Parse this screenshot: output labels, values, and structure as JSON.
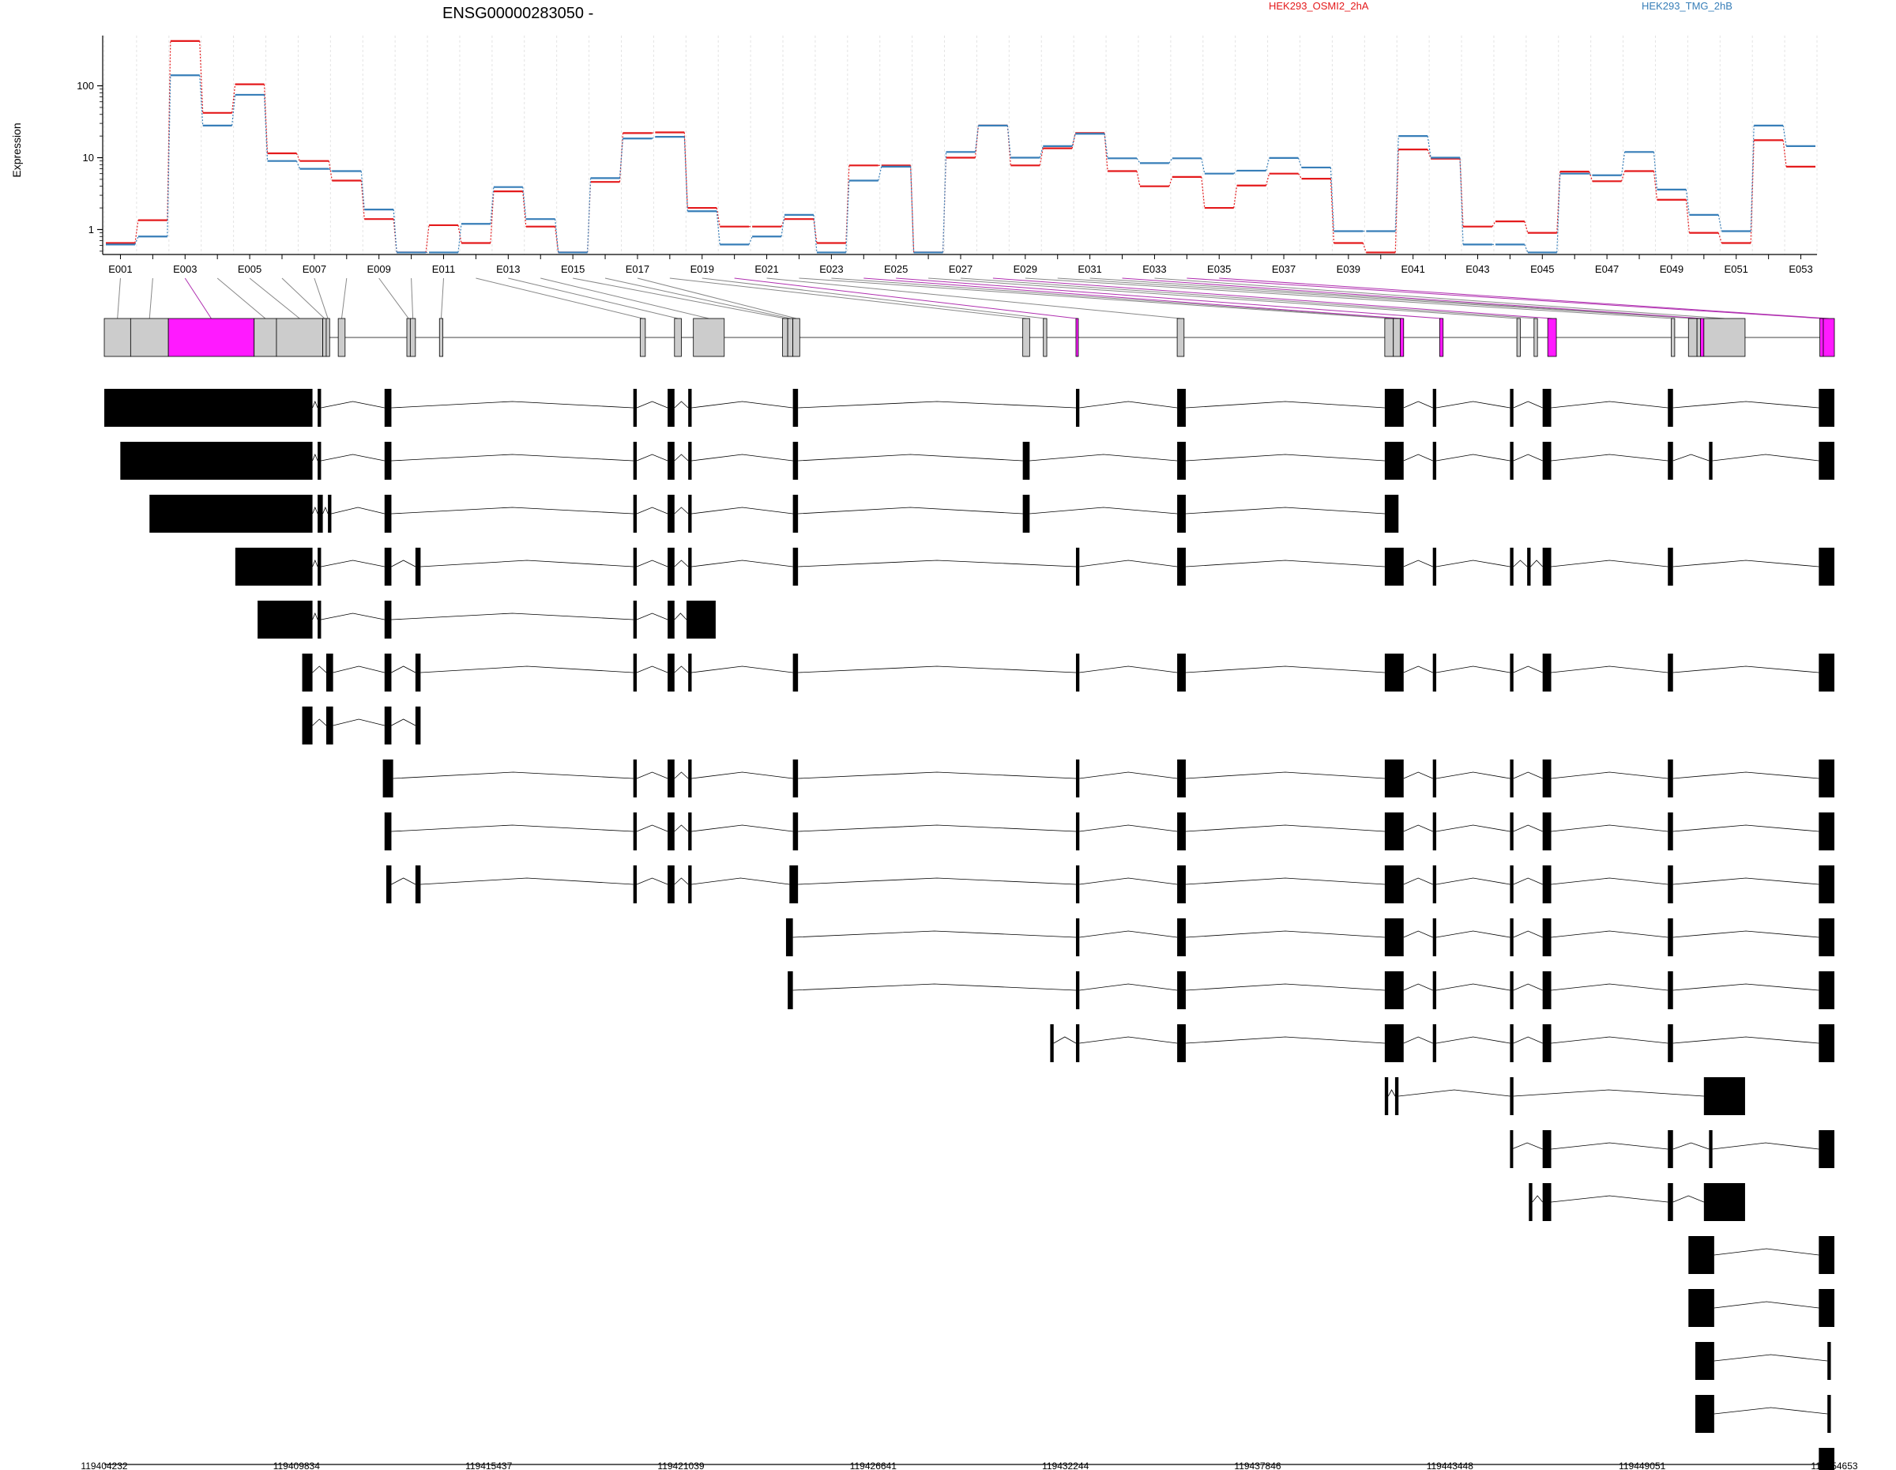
{
  "chart_data": {
    "type": "line",
    "gene_id": "ENSG00000283050 -",
    "ylabel": "Expression",
    "yscale": "log",
    "yticks": [
      "1",
      "10",
      "100"
    ],
    "ylim": [
      0.45,
      500
    ],
    "highlight_color": "#ff1aff",
    "exon_fill": "#cccccc",
    "series": [
      {
        "name": "HEK293_OSMI2_2hA",
        "color": "#e41a1c",
        "values": [
          0.65,
          1.35,
          420,
          42,
          105,
          11.5,
          9,
          4.8,
          1.4,
          0.48,
          1.15,
          0.65,
          3.4,
          1.1,
          0.48,
          4.6,
          22,
          22.5,
          2,
          1.1,
          1.1,
          1.4,
          0.65,
          7.8,
          7.8,
          0.48,
          10,
          28,
          7.8,
          13.5,
          22,
          6.5,
          4,
          5.4,
          2,
          4.1,
          6,
          5.1,
          0.65,
          0.48,
          13,
          9.7,
          1.1,
          1.3,
          0.9,
          6.4,
          4.7,
          6.5,
          2.6,
          0.9,
          0.65,
          17.5,
          7.5
        ]
      },
      {
        "name": "HEK293_TMG_2hB",
        "color": "#377eb8",
        "values": [
          0.62,
          0.8,
          140,
          28,
          75,
          9,
          7,
          6.5,
          1.9,
          0.48,
          0.48,
          1.2,
          3.9,
          1.4,
          0.48,
          5.2,
          18.5,
          19.5,
          1.8,
          0.62,
          0.8,
          1.6,
          0.48,
          4.8,
          7.5,
          0.48,
          12,
          28,
          10,
          14.5,
          21.5,
          9.8,
          8.4,
          9.8,
          6,
          6.6,
          9.9,
          7.3,
          0.95,
          0.95,
          20,
          10,
          0.62,
          0.62,
          0.48,
          6,
          5.7,
          12,
          3.6,
          1.6,
          0.95,
          28,
          14.5
        ]
      }
    ],
    "exon_labels": [
      "E001",
      "E003",
      "E005",
      "E007",
      "E009",
      "E011",
      "E013",
      "E015",
      "E017",
      "E019",
      "E021",
      "E023",
      "E025",
      "E027",
      "E029",
      "E031",
      "E033",
      "E035",
      "E037",
      "E039",
      "E041",
      "E043",
      "E045",
      "E047",
      "E049",
      "E051",
      "E053"
    ],
    "exons": [
      [
        119404232,
        119405000,
        0
      ],
      [
        119405000,
        119406100,
        0
      ],
      [
        119406100,
        119408600,
        1
      ],
      [
        119408600,
        119409250,
        0
      ],
      [
        119409250,
        119410600,
        0
      ],
      [
        119410600,
        119410700,
        0
      ],
      [
        119410700,
        119410800,
        0
      ],
      [
        119411050,
        119411250,
        0
      ],
      [
        119413050,
        119413150,
        0
      ],
      [
        119413150,
        119413300,
        0
      ],
      [
        119414000,
        119414100,
        0
      ],
      [
        119419850,
        119420000,
        0
      ],
      [
        119420850,
        119421050,
        0
      ],
      [
        119421400,
        119422300,
        0
      ],
      [
        119424000,
        119424150,
        0
      ],
      [
        119424150,
        119424300,
        0
      ],
      [
        119424300,
        119424500,
        0
      ],
      [
        119431000,
        119431200,
        0
      ],
      [
        119431600,
        119431700,
        0
      ],
      [
        119432550,
        119432600,
        1
      ],
      [
        119435500,
        119435700,
        0
      ],
      [
        119441550,
        119441800,
        0
      ],
      [
        119441800,
        119442000,
        0
      ],
      [
        119442000,
        119442100,
        1
      ],
      [
        119443150,
        119443250,
        1
      ],
      [
        119445400,
        119445500,
        0
      ],
      [
        119445900,
        119446000,
        0
      ],
      [
        119446300,
        119446550,
        1
      ],
      [
        119449900,
        119450000,
        0
      ],
      [
        119450400,
        119450650,
        0
      ],
      [
        119450650,
        119450750,
        0
      ],
      [
        119450750,
        119450850,
        1
      ],
      [
        119450850,
        119452050,
        0
      ],
      [
        119454230,
        119454330,
        1
      ],
      [
        119454330,
        119454653,
        1
      ]
    ],
    "transcripts": [
      [
        [
          119404232,
          119410300
        ],
        [
          119410450,
          119410550
        ],
        [
          119412400,
          119412600
        ],
        [
          119419650,
          119419750
        ],
        [
          119420650,
          119420850
        ],
        [
          119421250,
          119421350
        ],
        [
          119424300,
          119424450
        ],
        [
          119432550,
          119432650
        ],
        [
          119435500,
          119435750
        ],
        [
          119441550,
          119442100
        ],
        [
          119442950,
          119443050
        ],
        [
          119445200,
          119445300
        ],
        [
          119446150,
          119446400
        ],
        [
          119449800,
          119449950
        ],
        [
          119454200,
          119454653
        ]
      ],
      [
        [
          119404700,
          119410300
        ],
        [
          119410450,
          119410550
        ],
        [
          119412400,
          119412600
        ],
        [
          119419650,
          119419750
        ],
        [
          119420650,
          119420850
        ],
        [
          119421250,
          119421350
        ],
        [
          119424300,
          119424450
        ],
        [
          119431000,
          119431200
        ],
        [
          119435500,
          119435750
        ],
        [
          119441550,
          119442100
        ],
        [
          119442950,
          119443050
        ],
        [
          119445200,
          119445300
        ],
        [
          119446150,
          119446400
        ],
        [
          119449800,
          119449950
        ],
        [
          119451000,
          119451100
        ],
        [
          119454200,
          119454653
        ]
      ],
      [
        [
          119405550,
          119410300
        ],
        [
          119410450,
          119410600
        ],
        [
          119410750,
          119410850
        ],
        [
          119412400,
          119412600
        ],
        [
          119419650,
          119419750
        ],
        [
          119420650,
          119420850
        ],
        [
          119421250,
          119421350
        ],
        [
          119424300,
          119424450
        ],
        [
          119431000,
          119431200
        ],
        [
          119435500,
          119435750
        ],
        [
          119441550,
          119441950
        ]
      ],
      [
        [
          119408050,
          119410300
        ],
        [
          119410450,
          119410550
        ],
        [
          119412400,
          119412600
        ],
        [
          119413300,
          119413450
        ],
        [
          119419650,
          119419750
        ],
        [
          119420650,
          119420850
        ],
        [
          119421250,
          119421350
        ],
        [
          119424300,
          119424450
        ],
        [
          119432550,
          119432650
        ],
        [
          119435500,
          119435750
        ],
        [
          119441550,
          119442100
        ],
        [
          119442950,
          119443050
        ],
        [
          119445200,
          119445300
        ],
        [
          119445700,
          119445800
        ],
        [
          119446150,
          119446400
        ],
        [
          119449800,
          119449950
        ],
        [
          119454200,
          119454653
        ]
      ],
      [
        [
          119408700,
          119410300
        ],
        [
          119410450,
          119410550
        ],
        [
          119412400,
          119412600
        ],
        [
          119419650,
          119419750
        ],
        [
          119420650,
          119420850
        ],
        [
          119421200,
          119422050
        ]
      ],
      [
        [
          119410000,
          119410300
        ],
        [
          119410700,
          119410900
        ],
        [
          119412400,
          119412600
        ],
        [
          119413300,
          119413450
        ],
        [
          119419650,
          119419750
        ],
        [
          119420650,
          119420850
        ],
        [
          119421250,
          119421350
        ],
        [
          119424300,
          119424450
        ],
        [
          119432550,
          119432650
        ],
        [
          119435500,
          119435750
        ],
        [
          119441550,
          119442100
        ],
        [
          119442950,
          119443050
        ],
        [
          119445200,
          119445300
        ],
        [
          119446150,
          119446400
        ],
        [
          119449800,
          119449950
        ],
        [
          119454200,
          119454653
        ]
      ],
      [
        [
          119410000,
          119410300
        ],
        [
          119410700,
          119410900
        ],
        [
          119412400,
          119412600
        ],
        [
          119413300,
          119413450
        ]
      ],
      [
        [
          119412350,
          119412650
        ],
        [
          119419650,
          119419750
        ],
        [
          119420650,
          119420850
        ],
        [
          119421250,
          119421350
        ],
        [
          119424300,
          119424450
        ],
        [
          119432550,
          119432650
        ],
        [
          119435500,
          119435750
        ],
        [
          119441550,
          119442100
        ],
        [
          119442950,
          119443050
        ],
        [
          119445200,
          119445300
        ],
        [
          119446150,
          119446400
        ],
        [
          119449800,
          119449950
        ],
        [
          119454200,
          119454653
        ]
      ],
      [
        [
          119412400,
          119412600
        ],
        [
          119419650,
          119419750
        ],
        [
          119420650,
          119420850
        ],
        [
          119421250,
          119421350
        ],
        [
          119424300,
          119424450
        ],
        [
          119432550,
          119432650
        ],
        [
          119435500,
          119435750
        ],
        [
          119441550,
          119442100
        ],
        [
          119442950,
          119443050
        ],
        [
          119445200,
          119445300
        ],
        [
          119446150,
          119446400
        ],
        [
          119449800,
          119449950
        ],
        [
          119454200,
          119454653
        ]
      ],
      [
        [
          119412450,
          119412600
        ],
        [
          119413300,
          119413450
        ],
        [
          119419650,
          119419750
        ],
        [
          119420650,
          119420850
        ],
        [
          119421250,
          119421350
        ],
        [
          119424200,
          119424450
        ],
        [
          119432550,
          119432650
        ],
        [
          119435500,
          119435750
        ],
        [
          119441550,
          119442100
        ],
        [
          119442950,
          119443050
        ],
        [
          119445200,
          119445300
        ],
        [
          119446150,
          119446400
        ],
        [
          119449800,
          119449950
        ],
        [
          119454200,
          119454653
        ]
      ],
      [
        [
          119424100,
          119424300
        ],
        [
          119432550,
          119432650
        ],
        [
          119435500,
          119435750
        ],
        [
          119441550,
          119442100
        ],
        [
          119442950,
          119443050
        ],
        [
          119445200,
          119445300
        ],
        [
          119446150,
          119446400
        ],
        [
          119449800,
          119449950
        ],
        [
          119454200,
          119454653
        ]
      ],
      [
        [
          119424150,
          119424300
        ],
        [
          119432550,
          119432650
        ],
        [
          119435500,
          119435750
        ],
        [
          119441550,
          119442100
        ],
        [
          119442950,
          119443050
        ],
        [
          119445200,
          119445300
        ],
        [
          119446150,
          119446400
        ],
        [
          119449800,
          119449950
        ],
        [
          119454200,
          119454653
        ]
      ],
      [
        [
          119431800,
          119431900
        ],
        [
          119432550,
          119432650
        ],
        [
          119435500,
          119435750
        ],
        [
          119441550,
          119442100
        ],
        [
          119442950,
          119443050
        ],
        [
          119445200,
          119445300
        ],
        [
          119446150,
          119446400
        ],
        [
          119449800,
          119449950
        ],
        [
          119454200,
          119454653
        ]
      ],
      [
        [
          119441550,
          119441650
        ],
        [
          119441850,
          119441950
        ],
        [
          119445200,
          119445300
        ],
        [
          119450850,
          119452050
        ]
      ],
      [
        [
          119445200,
          119445250
        ],
        [
          119446150,
          119446400
        ],
        [
          119449800,
          119449950
        ],
        [
          119451000,
          119451100
        ],
        [
          119454200,
          119454653
        ]
      ],
      [
        [
          119445750,
          119445850
        ],
        [
          119446150,
          119446400
        ],
        [
          119449800,
          119449950
        ],
        [
          119450850,
          119452050
        ]
      ],
      [
        [
          119450400,
          119451150
        ],
        [
          119454200,
          119454653
        ]
      ],
      [
        [
          119450400,
          119451150
        ],
        [
          119454200,
          119454653
        ]
      ],
      [
        [
          119450600,
          119451150
        ],
        [
          119454450,
          119454550
        ]
      ],
      [
        [
          119450600,
          119451150
        ],
        [
          119454450,
          119454550
        ]
      ],
      [
        [
          119454200,
          119454653
        ]
      ]
    ],
    "xticks": [
      "119404232",
      "119409834",
      "119415437",
      "119421039",
      "119426641",
      "119432244",
      "119437846",
      "119443448",
      "119449051",
      "119454653"
    ],
    "xrange": [
      119404232,
      119454653
    ]
  }
}
